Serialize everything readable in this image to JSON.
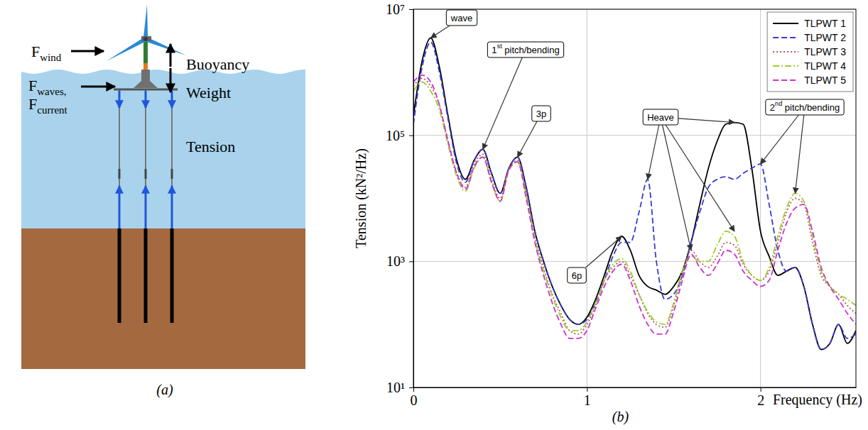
{
  "chart_data": {
    "type": "line",
    "caption": "(b)",
    "x_label": "Frequency (Hz)",
    "y_label": "Tension (kN²/Hz)",
    "x": [
      0,
      0.05,
      0.1,
      0.15,
      0.2,
      0.25,
      0.3,
      0.35,
      0.4,
      0.45,
      0.5,
      0.55,
      0.6,
      0.65,
      0.7,
      0.75,
      0.8,
      0.85,
      0.9,
      0.95,
      1,
      1.05,
      1.1,
      1.15,
      1.2,
      1.25,
      1.3,
      1.35,
      1.4,
      1.45,
      1.5,
      1.55,
      1.6,
      1.65,
      1.7,
      1.75,
      1.8,
      1.85,
      1.9,
      1.95,
      2,
      2.05,
      2.1,
      2.15,
      2.2,
      2.25,
      2.3,
      2.35,
      2.4,
      2.45,
      2.5,
      2.55
    ],
    "series": [
      {
        "name": "TLPWT 1",
        "color": "#000000",
        "line_style": "solid",
        "values": [
          200000.0,
          1500000.0,
          3500000.0,
          1200000.0,
          200000.0,
          40000.0,
          20000.0,
          40000.0,
          60000.0,
          25000.0,
          12000.0,
          30000.0,
          45000.0,
          15000.0,
          3000.0,
          1000.0,
          400.0,
          200.0,
          120.0,
          100.0,
          130.0,
          250.0,
          600.0,
          1500.0,
          2500.0,
          1500.0,
          600.0,
          400.0,
          350.0,
          300.0,
          400.0,
          700.0,
          2000.0,
          8000.0,
          30000.0,
          80000.0,
          150000.0,
          160000.0,
          150000.0,
          30000.0,
          3000.0,
          1200.0,
          600.0,
          700.0,
          800.0,
          400.0,
          100.0,
          40.0,
          50.0,
          100.0,
          50.0,
          80.0
        ]
      },
      {
        "name": "TLPWT 2",
        "color": "#3a3ad0",
        "line_style": "dashed",
        "values": [
          150000.0,
          1200000.0,
          3000000.0,
          1000000.0,
          180000.0,
          35000.0,
          18000.0,
          40000.0,
          60000.0,
          25000.0,
          12000.0,
          30000.0,
          45000.0,
          15000.0,
          3000.0,
          1000.0,
          400.0,
          200.0,
          120.0,
          100.0,
          120.0,
          220.0,
          500.0,
          1200.0,
          2000.0,
          2000.0,
          6000.0,
          20000.0,
          1000.0,
          250.0,
          300.0,
          600.0,
          2000.0,
          6000.0,
          15000.0,
          20000.0,
          22000.0,
          20000.0,
          25000.0,
          30000.0,
          35000.0,
          8000.0,
          1500.0,
          700.0,
          800.0,
          400.0,
          100.0,
          40.0,
          50.0,
          100.0,
          60.0,
          70.0
        ]
      },
      {
        "name": "TLPWT 3",
        "color": "#b45a50",
        "line_style": "dotted",
        "values": [
          600000.0,
          800000.0,
          600000.0,
          300000.0,
          80000.0,
          25000.0,
          15000.0,
          35000.0,
          50000.0,
          20000.0,
          10000.0,
          30000.0,
          40000.0,
          12000.0,
          2500.0,
          800.0,
          300.0,
          150.0,
          80.0,
          70.0,
          100.0,
          200.0,
          500.0,
          800.0,
          1000.0,
          600.0,
          300.0,
          150.0,
          100.0,
          90.0,
          200.0,
          600.0,
          1500.0,
          1000.0,
          800.0,
          1200.0,
          2000.0,
          1800.0,
          900.0,
          600.0,
          500.0,
          700.0,
          2000.0,
          6000.0,
          10000.0,
          8000.0,
          2000.0,
          600.0,
          400.0,
          300.0,
          200.0,
          150.0
        ]
      },
      {
        "name": "TLPWT 4",
        "color": "#9acd32",
        "line_style": "dashdot",
        "values": [
          500000.0,
          700000.0,
          500000.0,
          250000.0,
          70000.0,
          22000.0,
          13000.0,
          30000.0,
          45000.0,
          18000.0,
          9000.0,
          28000.0,
          38000.0,
          11000.0,
          2200.0,
          700.0,
          280.0,
          130.0,
          80.0,
          80.0,
          110.0,
          220.0,
          500.0,
          900.0,
          1100.0,
          700.0,
          300.0,
          160.0,
          110.0,
          100.0,
          220.0,
          700.0,
          1200.0,
          1000.0,
          1000.0,
          1800.0,
          3000.0,
          2500.0,
          1000.0,
          600.0,
          500.0,
          800.0,
          2500.0,
          7000.0,
          12000.0,
          9000.0,
          2500.0,
          700.0,
          400.0,
          300.0,
          250.0,
          200.0
        ]
      },
      {
        "name": "TLPWT 5",
        "color": "#cc33cc",
        "line_style": "dashed",
        "values": [
          700000.0,
          900000.0,
          700000.0,
          300000.0,
          80000.0,
          25000.0,
          14000.0,
          32000.0,
          45000.0,
          18000.0,
          9000.0,
          28000.0,
          38000.0,
          10000.0,
          2000.0,
          600.0,
          220.0,
          100.0,
          60.0,
          60.0,
          80.0,
          180.0,
          400.0,
          700.0,
          900.0,
          500.0,
          200.0,
          100.0,
          70.0,
          70.0,
          160.0,
          500.0,
          1300.0,
          800.0,
          600.0,
          900.0,
          1500.0,
          1300.0,
          700.0,
          500.0,
          400.0,
          500.0,
          1500.0,
          4000.0,
          7000.0,
          8000.0,
          3000.0,
          800.0,
          400.0,
          250.0,
          150.0,
          100.0
        ]
      }
    ],
    "xlim": [
      0,
      2.55
    ],
    "xticks": [
      0,
      1,
      2
    ],
    "ylim": [
      10,
      10000000.0
    ],
    "yticks": [
      {
        "value": 10,
        "label": "10¹"
      },
      {
        "value": 1000,
        "label": "10³"
      },
      {
        "value": 100000,
        "label": "10⁵"
      },
      {
        "value": 10000000,
        "label": "10⁷"
      }
    ],
    "log": "y",
    "grid": true,
    "legend": "upper right",
    "annotations": [
      {
        "text": "wave",
        "x": [
          0.1
        ],
        "y": [
          3500000.0
        ]
      },
      {
        "text": "1st pitch/bending",
        "x": [
          0.4
        ],
        "y": [
          60000.0
        ]
      },
      {
        "text": "3p",
        "x": [
          0.6
        ],
        "y": [
          45000.0
        ]
      },
      {
        "text": "6p",
        "x": [
          1.2
        ],
        "y": [
          2500.0
        ]
      },
      {
        "text": "Heave",
        "x": [
          1.35,
          1.6,
          1.85,
          1.85
        ],
        "y": [
          20000.0,
          1500.0,
          3000.0,
          160000.0
        ]
      },
      {
        "text": "2nd pitch/bending",
        "x": [
          2.0,
          2.2
        ],
        "y": [
          35000.0,
          12000.0
        ]
      }
    ]
  },
  "diagram": {
    "caption": "(a)",
    "labels": [
      {
        "text": "F",
        "sub": "wind"
      },
      {
        "text": "Buoyancy"
      },
      {
        "text": "Weight"
      },
      {
        "text": "F",
        "sub": "waves,"
      },
      {
        "text": "F",
        "sub": "current"
      },
      {
        "text": "Tension"
      }
    ]
  }
}
